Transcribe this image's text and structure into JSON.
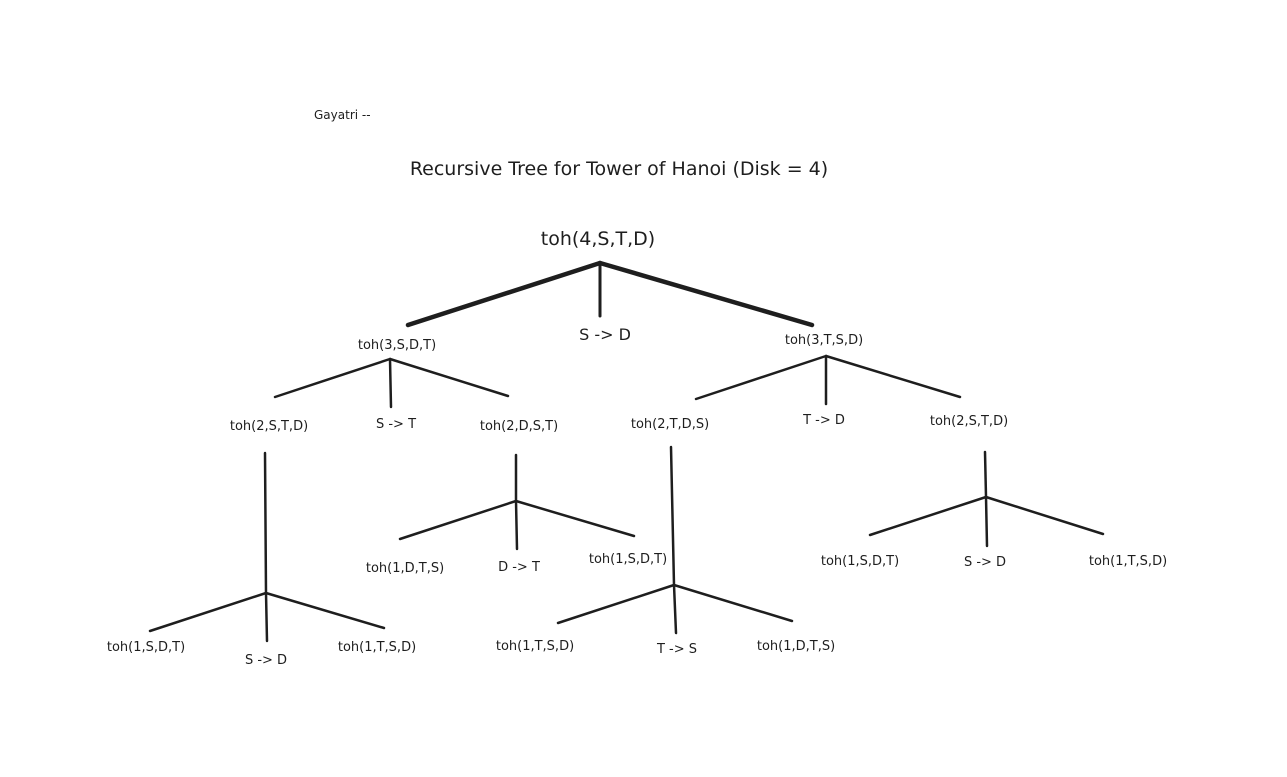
{
  "author": "Gayatri --",
  "title": "Recursive Tree for Tower of Hanoi (Disk = 4)",
  "tree": {
    "root": {
      "label": "toh(4,S,T,D)",
      "move": "S -> D"
    },
    "left": {
      "label": "toh(3,S,D,T)",
      "move": "S -> T",
      "left": {
        "label": "toh(2,S,T,D)",
        "move": "S -> D",
        "children": [
          "toh(1,S,D,T)",
          "toh(1,T,S,D)"
        ]
      },
      "right": {
        "label": "toh(2,D,S,T)",
        "move": "D -> T",
        "children": [
          "toh(1,D,T,S)",
          "toh(1,S,D,T)"
        ]
      }
    },
    "right": {
      "label": "toh(3,T,S,D)",
      "move": "T -> D",
      "left": {
        "label": "toh(2,T,D,S)",
        "move": "T -> S",
        "children": [
          "toh(1,T,S,D)",
          "toh(1,D,T,S)"
        ]
      },
      "right": {
        "label": "toh(2,S,T,D)",
        "move": "S -> D",
        "children": [
          "toh(1,S,D,T)",
          "toh(1,T,S,D)"
        ]
      }
    }
  }
}
